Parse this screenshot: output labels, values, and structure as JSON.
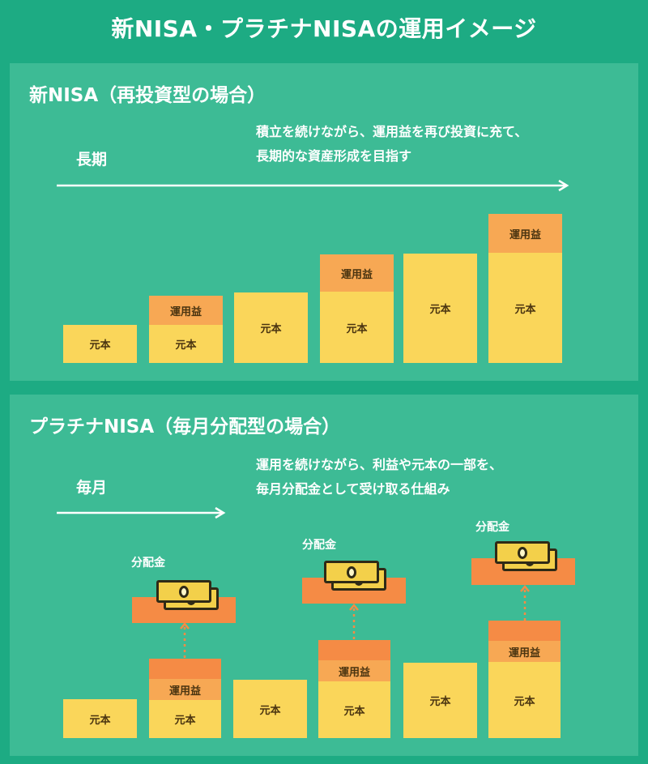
{
  "title": "新NISA・プラチナNISAの運用イメージ",
  "section1": {
    "heading": "新NISA（再投資型の場合）",
    "period": "長期",
    "description_lines": [
      "積立を続けながら、運用益を再び投資に充て、",
      "長期的な資産形成を目指す"
    ],
    "block_label_principal": "元本",
    "block_label_gain": "運用益"
  },
  "section2": {
    "heading": "プラチナNISA（毎月分配型の場合）",
    "period": "毎月",
    "description_lines": [
      "運用を続けながら、利益や元本の一部を、",
      "毎月分配金として受け取る仕組み"
    ],
    "block_label_principal": "元本",
    "block_label_gain": "運用益",
    "distribution_label": "分配金"
  },
  "colors": {
    "background": "#1dab83",
    "panel": "#3dbb95",
    "principal": "#fad65a",
    "gain": "#f7a854",
    "distribution_plate": "#f58b45"
  },
  "icons": [
    "right-arrow-icon",
    "money-bills-icon",
    "dotted-up-arrow-icon"
  ]
}
